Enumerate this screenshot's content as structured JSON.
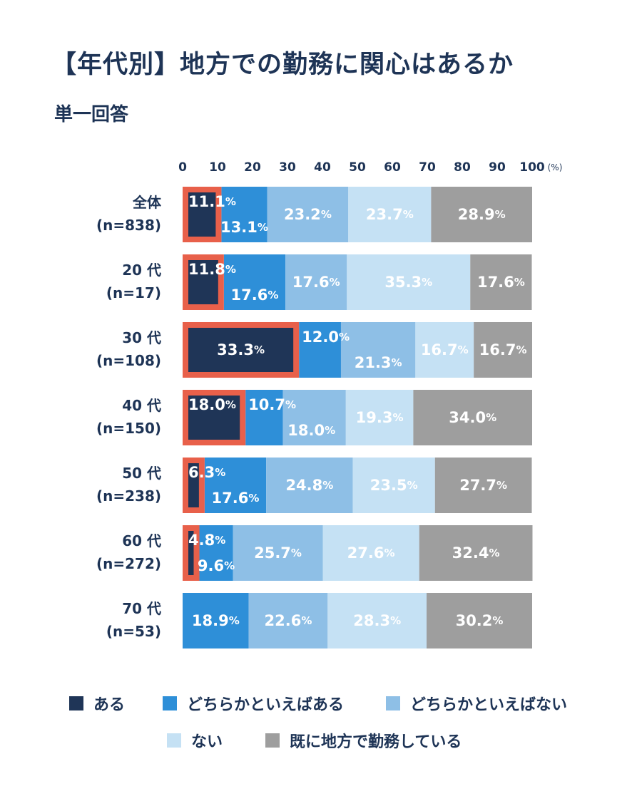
{
  "page": {
    "title": "【年代別】地方での勤務に関心はあるか",
    "subtitle": "単一回答"
  },
  "colors": {
    "aru": "#1f3557",
    "dochiraka_aru": "#2e8fd8",
    "dochiraka_nai": "#8ebfe6",
    "nai": "#c5e1f4",
    "sude": "#9e9e9e",
    "highlight": "#e8604a",
    "text_dark": "#1e3456",
    "text_white": "#ffffff"
  },
  "chart_data": {
    "type": "bar",
    "orientation": "horizontal",
    "stacked": true,
    "title": "【年代別】地方での勤務に関心はあるか",
    "subtitle": "単一回答",
    "xlim": [
      0,
      100
    ],
    "x_ticks": [
      "0",
      "10",
      "20",
      "30",
      "40",
      "50",
      "60",
      "70",
      "80",
      "90",
      "100"
    ],
    "x_unit": "(%)",
    "categories": [
      {
        "line1": "全体",
        "line2": "(n=838)"
      },
      {
        "line1": "20 代",
        "line2": "(n=17)"
      },
      {
        "line1": "30 代",
        "line2": "(n=108)"
      },
      {
        "line1": "40 代",
        "line2": "(n=150)"
      },
      {
        "line1": "50 代",
        "line2": "(n=238)"
      },
      {
        "line1": "60 代",
        "line2": "(n=272)"
      },
      {
        "line1": "70 代",
        "line2": "(n=53)"
      }
    ],
    "highlight_series": "ある + どちらかといえばある",
    "series": [
      {
        "name": "ある",
        "color_key": "aru",
        "values": [
          11.1,
          11.8,
          33.3,
          18.0,
          6.3,
          4.8,
          0
        ],
        "labels": [
          "11.1",
          "11.8",
          "33.3",
          "18.0",
          "6.3",
          "4.8",
          ""
        ]
      },
      {
        "name": "どちらかといえばある",
        "color_key": "dochiraka_aru",
        "values": [
          13.1,
          17.6,
          12.0,
          10.7,
          17.6,
          9.6,
          18.9
        ],
        "labels": [
          "13.1",
          "17.6",
          "12.0",
          "10.7",
          "17.6",
          "9.6",
          "18.9"
        ]
      },
      {
        "name": "どちらかといえばない",
        "color_key": "dochiraka_nai",
        "values": [
          23.2,
          17.6,
          21.3,
          18.0,
          24.8,
          25.7,
          22.6
        ],
        "labels": [
          "23.2",
          "17.6",
          "21.3",
          "18.0",
          "24.8",
          "25.7",
          "22.6"
        ]
      },
      {
        "name": "ない",
        "color_key": "nai",
        "values": [
          23.7,
          35.3,
          16.7,
          19.3,
          23.5,
          27.6,
          28.3
        ],
        "labels": [
          "23.7",
          "35.3",
          "16.7",
          "19.3",
          "23.5",
          "27.6",
          "28.3"
        ]
      },
      {
        "name": "既に地方で勤務している",
        "color_key": "sude",
        "values": [
          28.9,
          17.6,
          16.7,
          34.0,
          27.7,
          32.4,
          30.2
        ],
        "labels": [
          "28.9",
          "17.6",
          "16.7",
          "34.0",
          "27.7",
          "32.4",
          "30.2"
        ]
      }
    ],
    "percent_sign": "%"
  }
}
